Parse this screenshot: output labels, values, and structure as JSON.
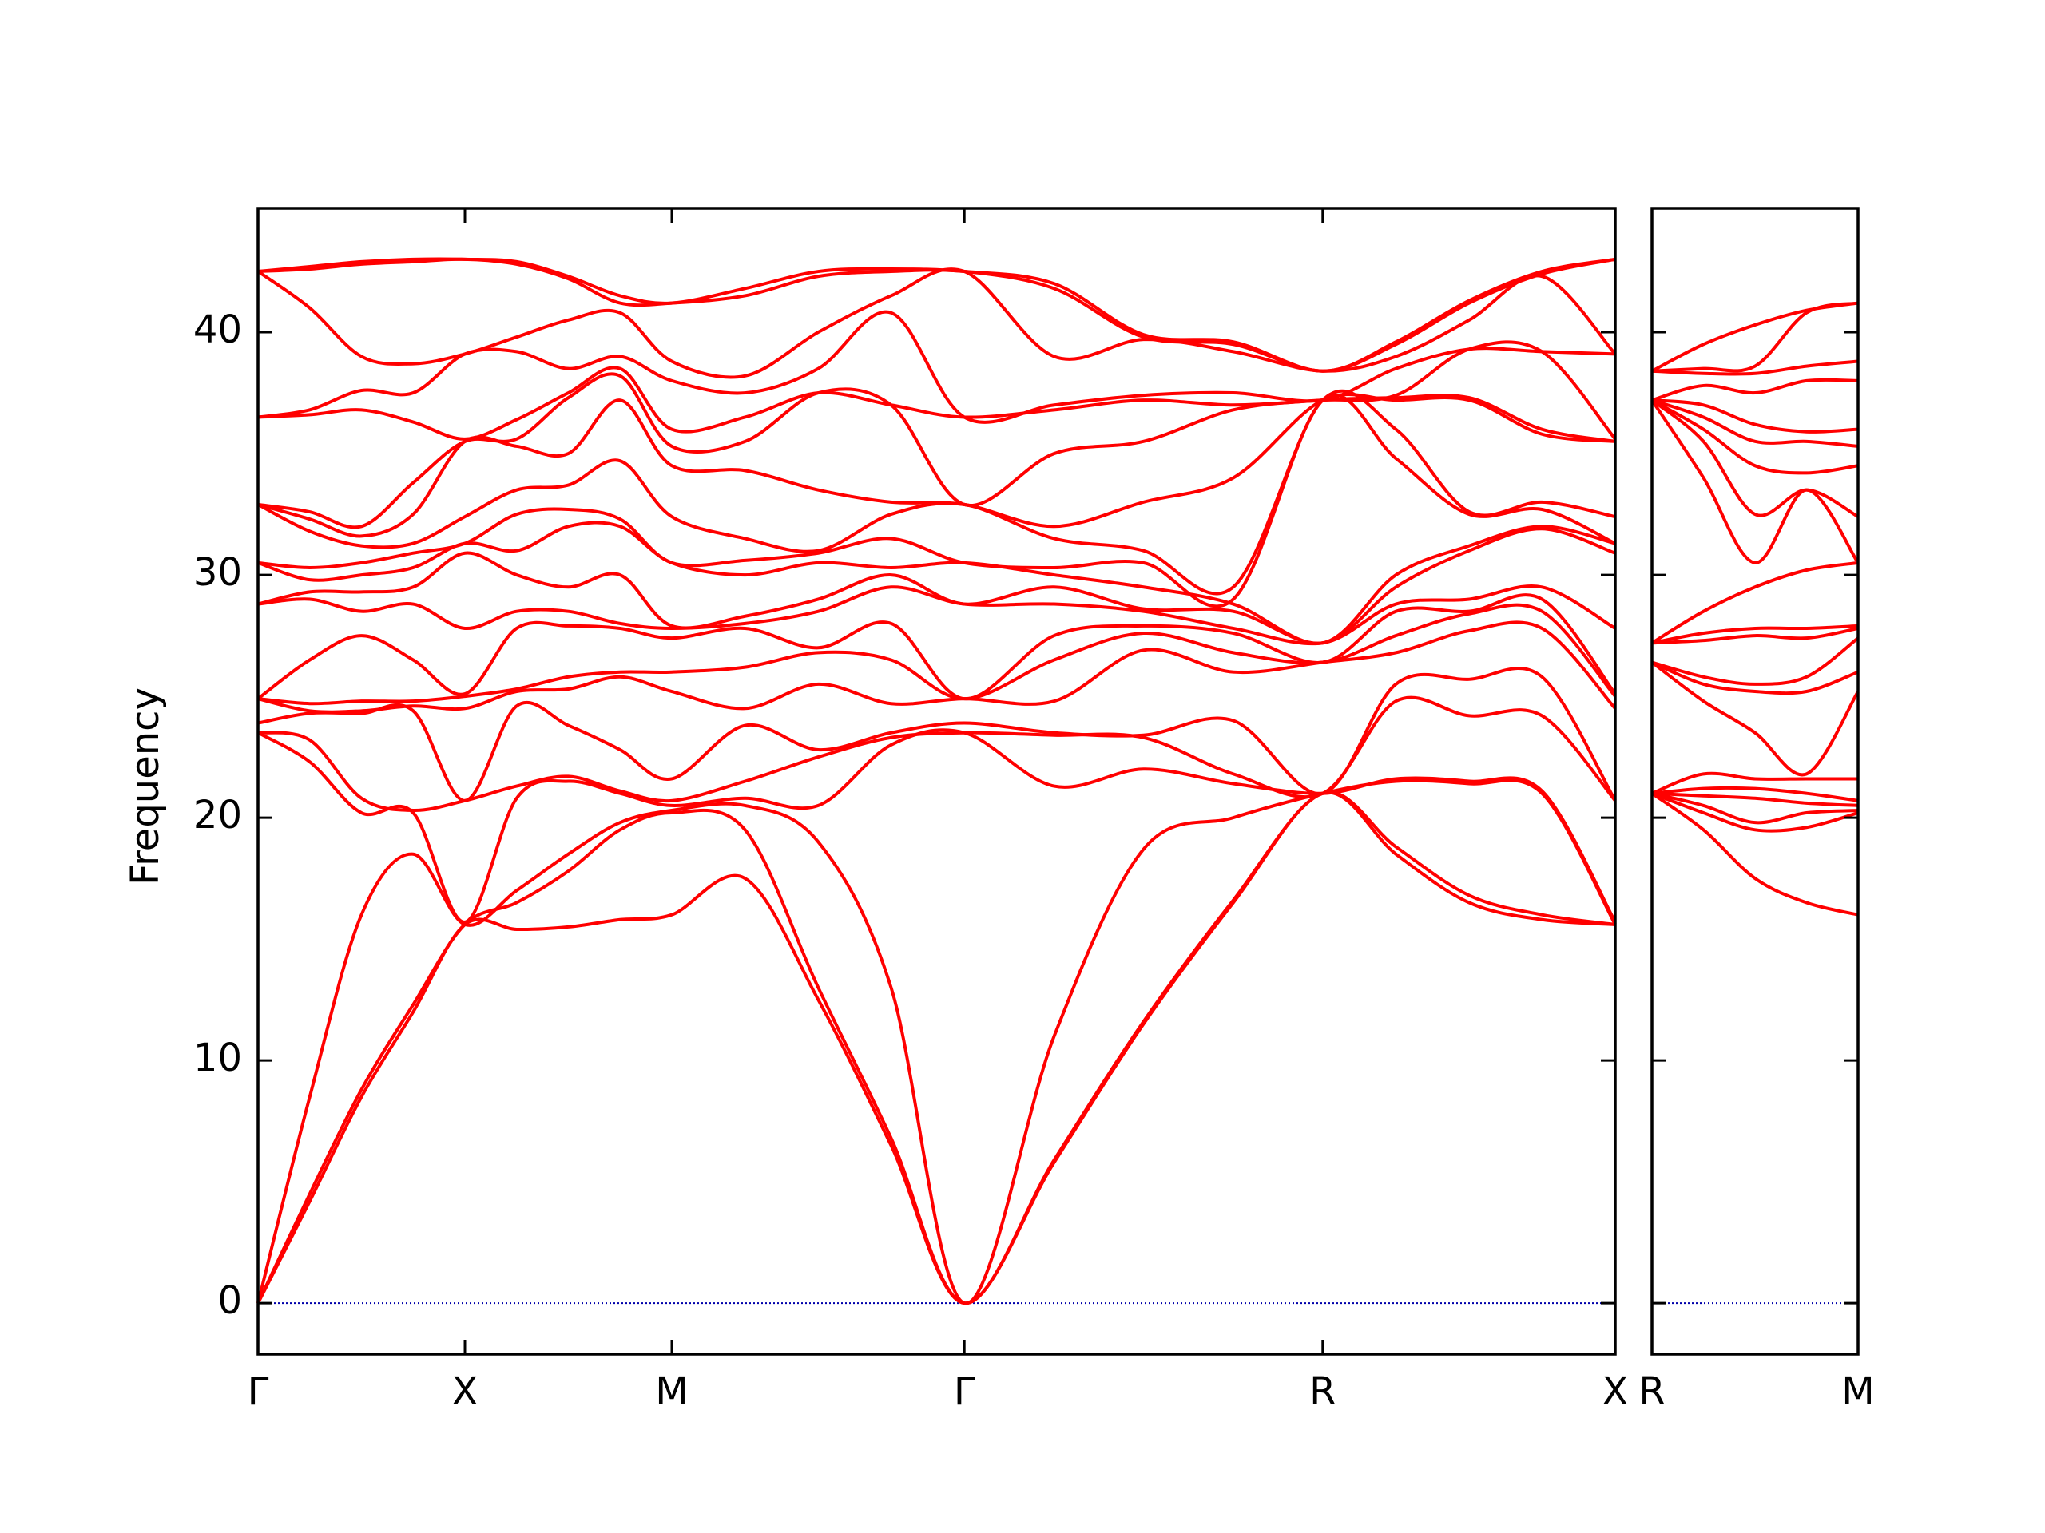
{
  "chart_data": [
    {
      "type": "line",
      "ylabel": "Frequency",
      "color": "#ff0000",
      "line_width": 4,
      "hline": 0,
      "hline_color": "#0000aa",
      "show_ytick_labels": true,
      "xlim": [
        0,
        3.28
      ],
      "ylim": [
        -2.1,
        45.1
      ],
      "xticks": [
        {
          "value": 0,
          "label": "Γ"
        },
        {
          "value": 0.5,
          "label": "X"
        },
        {
          "value": 1.0,
          "label": "M"
        },
        {
          "value": 1.707,
          "label": "Γ"
        },
        {
          "value": 2.573,
          "label": "R"
        },
        {
          "value": 3.28,
          "label": "X"
        }
      ],
      "yticks": [
        0,
        10,
        20,
        30,
        40
      ],
      "x": [
        0,
        0.125,
        0.25,
        0.375,
        0.5,
        0.625,
        0.75,
        0.875,
        1.0,
        1.177,
        1.354,
        1.53,
        1.707,
        1.924,
        2.14,
        2.357,
        2.573,
        2.75,
        2.927,
        3.103,
        3.28
      ],
      "values": [
        [
          0,
          0,
          0,
          23.5,
          23.5,
          23.9,
          24.9,
          24.9,
          24.9,
          28.8,
          28.8,
          30.5,
          30.5,
          32.9,
          32.9,
          32.9,
          36.5,
          36.5,
          42.5,
          42.5,
          42.5
        ],
        [
          4.2,
          4.5,
          8.5,
          22.3,
          23.2,
          24.3,
          24.4,
          24.7,
          26.5,
          29.0,
          29.3,
          29.8,
          30.3,
          31.8,
          32.3,
          32.6,
          36.6,
          36.8,
          41.0,
          42.6,
          42.7
        ],
        [
          8.5,
          8.8,
          16,
          20.2,
          20.8,
          24.3,
          24.4,
          24.8,
          27.5,
          28.5,
          29.3,
          30.0,
          30.5,
          31.2,
          31.6,
          32.0,
          36.8,
          37.6,
          39.0,
          42.8,
          42.9
        ],
        [
          12,
          12.3,
          18.5,
          20.2,
          20.3,
          24.4,
          24.6,
          24.8,
          26.5,
          28.8,
          29.5,
          30.3,
          30.9,
          31.3,
          32.5,
          33.8,
          36.3,
          37.5,
          38.7,
          42.9,
          43.0
        ],
        [
          15.6,
          15.6,
          15.6,
          15.7,
          20.7,
          20.7,
          24.5,
          25.0,
          25.1,
          27.8,
          30.9,
          31.3,
          31.3,
          32.4,
          35.5,
          35.5,
          35.6,
          39.1,
          39.1,
          43.0,
          43.0
        ],
        [
          15.4,
          16.5,
          17,
          20.8,
          21.3,
          24.6,
          25.2,
          25.3,
          27.8,
          28.5,
          30.0,
          31.0,
          32.5,
          33.5,
          35.3,
          35.6,
          36.4,
          39.2,
          39.8,
          42.8,
          42.9
        ],
        [
          15.5,
          17.8,
          18.5,
          21.5,
          21.7,
          23.8,
          25.3,
          25.8,
          27.9,
          28.5,
          29.5,
          32.0,
          32.7,
          33.7,
          35.0,
          37.3,
          37.5,
          38.5,
          40.5,
          42.2,
          42.3
        ],
        [
          15.8,
          19.5,
          19.8,
          21.0,
          21.1,
          22.8,
          25.8,
          26.0,
          27.8,
          28.0,
          30.0,
          32.0,
          32.3,
          34.7,
          37.2,
          38.2,
          38.5,
          39.0,
          40.8,
          41.2,
          41.5
        ],
        [
          16.0,
          20.2,
          20.3,
          20.5,
          20.7,
          21.6,
          25.2,
          26.0,
          27.4,
          27.8,
          27.9,
          30.5,
          30.5,
          32.4,
          34.5,
          35.3,
          36.0,
          38.0,
          38.8,
          41.2,
          41.2
        ],
        [
          17.5,
          19.5,
          20.5,
          20.8,
          21.5,
          23.8,
          24.5,
          26.2,
          27.8,
          28.0,
          28.3,
          30.0,
          30.6,
          31.5,
          34.3,
          35.5,
          36.5,
          37.5,
          38.2,
          41.5,
          41.8
        ],
        [
          12.5,
          13.0,
          19.0,
          20.5,
          22.5,
          22.8,
          25.5,
          26.8,
          27.0,
          28.5,
          29.0,
          30.5,
          30.9,
          31.0,
          33.5,
          37.5,
          37.5,
          38.5,
          40.0,
          42.3,
          42.5
        ],
        [
          6.5,
          6.8,
          13.0,
          23.0,
          23.3,
          23.5,
          24.7,
          26.5,
          28.0,
          29.5,
          30.0,
          30.3,
          31.5,
          32.5,
          33.0,
          37.0,
          37.0,
          40.8,
          41.5,
          42.5,
          42.6
        ],
        [
          0,
          0,
          0,
          23.5,
          23.5,
          23.9,
          24.9,
          24.9,
          24.9,
          28.8,
          28.8,
          30.5,
          30.5,
          32.9,
          32.9,
          32.9,
          36.5,
          36.5,
          42.5,
          42.5,
          42.5
        ],
        [
          5.8,
          5.9,
          11,
          21.3,
          23.4,
          23.5,
          24.8,
          26.5,
          27.5,
          28.8,
          29.5,
          30.0,
          30.3,
          31.5,
          32.0,
          35.0,
          36.8,
          37.0,
          39.0,
          41.8,
          42.0
        ],
        [
          11.5,
          11.6,
          18.7,
          22.0,
          23.3,
          23.4,
          26.9,
          27.6,
          27.9,
          28.5,
          28.6,
          29.5,
          30.5,
          31.0,
          33.0,
          35.5,
          37.2,
          37.4,
          39.7,
          39.8,
          39.9
        ],
        [
          16.5,
          16.6,
          20.0,
          21.4,
          21.8,
          24.0,
          26.0,
          26.8,
          27.6,
          27.8,
          28.5,
          28.8,
          29.0,
          29.5,
          34.0,
          36.8,
          37.0,
          37.5,
          39.2,
          39.5,
          39.6
        ],
        [
          21.0,
          21.0,
          21.0,
          21.0,
          21.0,
          21.0,
          26.4,
          26.4,
          26.4,
          27.2,
          27.2,
          27.2,
          37.2,
          37.2,
          37.2,
          37.2,
          37.2,
          37.2,
          38.4,
          38.4,
          38.4
        ],
        [
          18.5,
          18.8,
          21.5,
          21.6,
          24.8,
          25.5,
          26.8,
          27.5,
          28.5,
          28.8,
          29.5,
          30.0,
          34.8,
          36.0,
          37.2,
          37.3,
          37.4,
          38.5,
          39.0,
          39.5,
          39.6
        ],
        [
          16.5,
          16.8,
          21.4,
          21.5,
          24.2,
          25.7,
          27.7,
          28.4,
          28.5,
          29.0,
          31.0,
          31.2,
          32.5,
          32.6,
          37.2,
          37.3,
          39.3,
          39.3,
          40.5,
          41.2,
          41.3
        ],
        [
          15.8,
          16.0,
          21.0,
          21.1,
          24.2,
          25.8,
          27.8,
          28.5,
          29.0,
          29.5,
          31.9,
          32.0,
          32.7,
          33.0,
          35.8,
          36.0,
          39.2,
          39.2,
          42.3,
          42.4,
          42.5
        ],
        [
          15.6,
          15.6,
          15.6,
          15.7,
          20.7,
          20.7,
          24.5,
          25.0,
          25.1,
          27.8,
          30.9,
          31.3,
          31.3,
          32.4,
          35.5,
          35.5,
          35.6,
          39.1,
          39.1,
          43.0,
          43.0
        ]
      ]
    },
    {
      "type": "line",
      "color": "#ff0000",
      "line_width": 4,
      "hline": 0,
      "hline_color": "#0000aa",
      "show_ytick_labels": false,
      "xlim": [
        3.28,
        3.78
      ],
      "ylim": [
        -2.1,
        45.1
      ],
      "xticks": [
        {
          "value": 3.28,
          "label": "R"
        },
        {
          "value": 3.78,
          "label": "M"
        }
      ],
      "yticks": [
        0,
        10,
        20,
        30,
        40
      ],
      "x": [
        3.28,
        3.405,
        3.53,
        3.655,
        3.78
      ],
      "values": [
        [
          21.0,
          21.0,
          21.0,
          21.0,
          21.0,
          21.0,
          26.4,
          26.4,
          26.4,
          27.2,
          27.2,
          27.2,
          37.2,
          37.2,
          37.2,
          37.2,
          37.2,
          37.2,
          38.4,
          38.4,
          38.4
        ],
        [
          19.5,
          20.2,
          20.5,
          20.9,
          21.2,
          21.8,
          24.8,
          25.5,
          25.8,
          27.3,
          27.6,
          28.5,
          34.0,
          35.5,
          36.0,
          36.5,
          37.0,
          37.8,
          38.3,
          38.5,
          39.5
        ],
        [
          17.5,
          19.5,
          19.8,
          20.8,
          21.2,
          21.6,
          23.5,
          25.2,
          25.5,
          27.5,
          27.8,
          29.5,
          30.5,
          32.5,
          34.5,
          35.5,
          36.2,
          37.5,
          38.3,
          38.6,
          40.3
        ],
        [
          16.5,
          19.6,
          20.2,
          20.6,
          21.0,
          21.6,
          21.8,
          25.2,
          25.8,
          27.4,
          27.8,
          30.2,
          33.5,
          33.5,
          34.2,
          35.5,
          35.9,
          38.0,
          38.6,
          40.8,
          40.9
        ],
        [
          16.0,
          20.2,
          20.3,
          20.5,
          20.7,
          21.6,
          25.2,
          26.0,
          27.4,
          27.8,
          27.9,
          30.5,
          30.5,
          32.4,
          34.5,
          35.3,
          36.0,
          38.0,
          38.8,
          41.2,
          41.2
        ]
      ]
    }
  ]
}
